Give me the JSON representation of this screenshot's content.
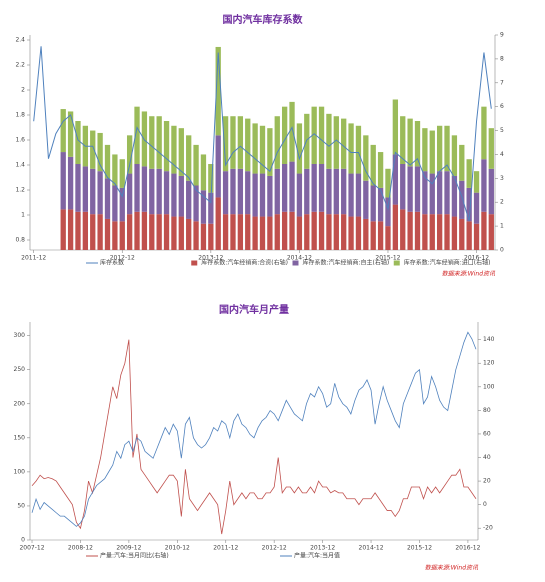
{
  "chart_data": [
    {
      "type": "bar",
      "stacked": true,
      "title": "国内汽车库存系数",
      "source": "数据来源:Wind资讯",
      "categories": [
        "2011-12",
        null,
        null,
        null,
        null,
        null,
        null,
        null,
        null,
        null,
        null,
        null,
        "2012-12",
        null,
        null,
        null,
        null,
        null,
        null,
        null,
        null,
        null,
        null,
        null,
        "2013-12",
        null,
        null,
        null,
        null,
        null,
        null,
        null,
        null,
        null,
        null,
        null,
        "2014-12",
        null,
        null,
        null,
        null,
        null,
        null,
        null,
        null,
        null,
        null,
        null,
        "2015-12",
        null,
        null,
        null,
        null,
        null,
        null,
        null,
        null,
        null,
        null,
        null,
        "2016-12",
        null,
        null
      ],
      "ylim": [
        0.72,
        2.44
      ],
      "yticks": [
        0.8,
        1.0,
        1.2,
        1.4,
        1.6,
        1.8,
        2.0,
        2.2,
        2.4
      ],
      "y2lim": [
        0,
        9
      ],
      "y2ticks": [
        0,
        1,
        2,
        3,
        4,
        5,
        6,
        7,
        8,
        9
      ],
      "series": [
        {
          "name": "库存系数",
          "type": "line",
          "color": "#4f81bd",
          "values": [
            1.75,
            2.35,
            1.45,
            1.65,
            1.75,
            1.8,
            1.6,
            1.55,
            1.55,
            1.4,
            1.3,
            1.25,
            1.15,
            1.4,
            1.7,
            1.6,
            1.55,
            1.5,
            1.45,
            1.4,
            1.35,
            1.3,
            1.2,
            1.15,
            1.1,
            2.3,
            1.4,
            1.5,
            1.55,
            1.5,
            1.45,
            1.4,
            1.35,
            1.5,
            1.6,
            1.7,
            1.45,
            1.6,
            1.65,
            1.6,
            1.55,
            1.6,
            1.55,
            1.5,
            1.5,
            1.35,
            1.25,
            1.2,
            1.05,
            1.5,
            1.45,
            1.4,
            1.45,
            1.3,
            1.25,
            1.35,
            1.4,
            1.3,
            1.15,
            0.95,
            1.75,
            2.3,
            1.85
          ]
        },
        {
          "name": "库存系数:汽车经销商:合资(右轴)",
          "type": "bar",
          "axis": "y2",
          "color": "#c0504d",
          "values": [
            null,
            null,
            null,
            null,
            1.7,
            1.7,
            1.6,
            1.6,
            1.5,
            1.5,
            1.3,
            1.2,
            1.2,
            1.5,
            1.6,
            1.6,
            1.5,
            1.5,
            1.5,
            1.4,
            1.4,
            1.3,
            1.2,
            1.1,
            1.1,
            2.2,
            1.5,
            1.5,
            1.5,
            1.5,
            1.4,
            1.4,
            1.4,
            1.5,
            1.6,
            1.6,
            1.4,
            1.5,
            1.6,
            1.6,
            1.5,
            1.5,
            1.5,
            1.4,
            1.4,
            1.3,
            1.2,
            1.2,
            1.0,
            1.9,
            1.7,
            1.6,
            1.6,
            1.5,
            1.5,
            1.5,
            1.5,
            1.4,
            1.3,
            1.2,
            1.1,
            1.6,
            1.5
          ]
        },
        {
          "name": "库存系数:汽车经销商:自主(右轴)",
          "type": "bar",
          "axis": "y2",
          "color": "#8064a2",
          "values": [
            null,
            null,
            null,
            null,
            2.4,
            2.2,
            2.0,
            1.9,
            1.9,
            1.8,
            1.7,
            1.5,
            1.4,
            1.7,
            2.0,
            1.9,
            1.9,
            1.9,
            1.8,
            1.8,
            1.7,
            1.6,
            1.5,
            1.4,
            1.3,
            2.6,
            1.8,
            1.9,
            1.9,
            1.8,
            1.8,
            1.8,
            1.7,
            1.9,
            2.0,
            2.1,
            1.8,
            1.9,
            2.0,
            2.0,
            1.9,
            1.9,
            1.9,
            1.8,
            1.8,
            1.6,
            1.5,
            1.4,
            1.2,
            2.1,
            1.9,
            1.9,
            1.9,
            1.8,
            1.7,
            1.8,
            1.8,
            1.7,
            1.6,
            1.4,
            1.3,
            2.2,
            1.9
          ]
        },
        {
          "name": "库存系数:汽车经销商:进口(右轴)",
          "type": "bar",
          "axis": "y2",
          "color": "#9bbb59",
          "values": [
            null,
            null,
            null,
            null,
            1.8,
            1.9,
            1.8,
            1.7,
            1.6,
            1.6,
            1.4,
            1.3,
            1.2,
            1.6,
            2.4,
            2.3,
            2.2,
            2.2,
            2.1,
            2.0,
            2.0,
            1.9,
            1.7,
            1.5,
            1.2,
            3.7,
            2.3,
            2.2,
            2.2,
            2.2,
            2.1,
            2.0,
            2.0,
            2.2,
            2.4,
            2.5,
            2.1,
            2.3,
            2.4,
            2.4,
            2.3,
            2.2,
            2.1,
            2.1,
            2.0,
            1.9,
            1.7,
            1.5,
            1.2,
            2.3,
            2.0,
            2.0,
            1.9,
            1.8,
            1.8,
            1.9,
            1.9,
            1.7,
            1.5,
            1.2,
            0.9,
            2.2,
            1.7
          ]
        }
      ]
    },
    {
      "type": "line",
      "title": "国内汽车月产量",
      "source": "数据来源:Wind资讯",
      "categories": [
        "2007-12",
        null,
        null,
        null,
        null,
        null,
        null,
        null,
        null,
        null,
        null,
        null,
        "2008-12",
        null,
        null,
        null,
        null,
        null,
        null,
        null,
        null,
        null,
        null,
        null,
        "2009-12",
        null,
        null,
        null,
        null,
        null,
        null,
        null,
        null,
        null,
        null,
        null,
        "2010-12",
        null,
        null,
        null,
        null,
        null,
        null,
        null,
        null,
        null,
        null,
        null,
        "2011-12",
        null,
        null,
        null,
        null,
        null,
        null,
        null,
        null,
        null,
        null,
        null,
        "2012-12",
        null,
        null,
        null,
        null,
        null,
        null,
        null,
        null,
        null,
        null,
        null,
        "2013-12",
        null,
        null,
        null,
        null,
        null,
        null,
        null,
        null,
        null,
        null,
        null,
        "2014-12",
        null,
        null,
        null,
        null,
        null,
        null,
        null,
        null,
        null,
        null,
        null,
        "2015-12",
        null,
        null,
        null,
        null,
        null,
        null,
        null,
        null,
        null,
        null,
        null,
        "2016-12",
        null,
        null
      ],
      "ylim": [
        0,
        320
      ],
      "yticks": [
        0,
        50,
        100,
        150,
        200,
        250,
        300
      ],
      "y2lim": [
        -30,
        155
      ],
      "y2ticks": [
        -20,
        0,
        20,
        40,
        60,
        80,
        100,
        120,
        140
      ],
      "series": [
        {
          "name": "产量:汽车:当月同比(右轴)",
          "axis": "y2",
          "color": "#c0504d",
          "values": [
            16,
            20,
            25,
            22,
            23,
            22,
            20,
            15,
            10,
            5,
            0,
            -15,
            -20,
            -5,
            20,
            10,
            25,
            40,
            60,
            80,
            100,
            90,
            110,
            120,
            140,
            40,
            60,
            30,
            25,
            20,
            15,
            10,
            15,
            20,
            25,
            25,
            20,
            -10,
            30,
            5,
            0,
            -5,
            0,
            5,
            10,
            5,
            0,
            -25,
            -5,
            20,
            0,
            5,
            10,
            5,
            10,
            10,
            5,
            5,
            10,
            10,
            15,
            40,
            10,
            15,
            15,
            10,
            15,
            10,
            10,
            15,
            10,
            20,
            15,
            15,
            10,
            12,
            10,
            10,
            5,
            5,
            5,
            0,
            5,
            5,
            5,
            10,
            5,
            0,
            -5,
            -5,
            -10,
            -5,
            5,
            5,
            15,
            15,
            15,
            5,
            15,
            10,
            15,
            10,
            15,
            20,
            25,
            25,
            30,
            15,
            15,
            10,
            5
          ]
        },
        {
          "name": "产量:汽车:当月值",
          "color": "#4f81bd",
          "values": [
            40,
            60,
            45,
            55,
            50,
            45,
            40,
            35,
            35,
            30,
            25,
            20,
            25,
            35,
            60,
            70,
            80,
            85,
            90,
            100,
            110,
            130,
            120,
            140,
            145,
            130,
            150,
            145,
            130,
            125,
            120,
            135,
            150,
            165,
            155,
            170,
            160,
            120,
            170,
            180,
            150,
            140,
            135,
            140,
            150,
            165,
            160,
            175,
            170,
            150,
            175,
            185,
            170,
            165,
            155,
            150,
            165,
            175,
            180,
            190,
            185,
            175,
            190,
            205,
            195,
            185,
            180,
            175,
            200,
            215,
            210,
            225,
            215,
            195,
            200,
            230,
            210,
            200,
            195,
            185,
            205,
            220,
            225,
            235,
            220,
            170,
            200,
            225,
            205,
            190,
            175,
            165,
            200,
            215,
            230,
            245,
            250,
            200,
            210,
            240,
            225,
            205,
            195,
            190,
            220,
            250,
            270,
            290,
            305,
            295,
            280
          ]
        }
      ]
    }
  ]
}
